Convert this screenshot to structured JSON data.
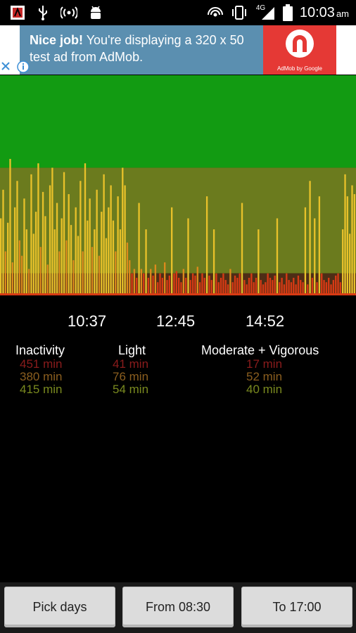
{
  "status_bar": {
    "time": "10:03",
    "ampm": "am",
    "network": "4G",
    "left_icons": [
      "app-notification-icon",
      "usb-icon",
      "hotspot-icon",
      "android-debug-icon"
    ],
    "right_icons": [
      "wifi-hotspot-icon",
      "vibrate-icon",
      "signal-icon",
      "battery-icon"
    ]
  },
  "ad": {
    "headline": "Nice job!",
    "body": " You're displaying a 320 x 50 test ad from AdMob.",
    "logo_caption": "AdMob by Google"
  },
  "chart_data": {
    "type": "bar",
    "zones": [
      {
        "name": "moderate-vigorous",
        "color": "#129b12",
        "from": 0.58,
        "to": 1.0
      },
      {
        "name": "light",
        "color": "#6b7b1e",
        "from": 0.1,
        "to": 0.58
      },
      {
        "name": "inactive",
        "color": "#4e2d16",
        "from": 0.0,
        "to": 0.1
      }
    ],
    "bar_colors": {
      "high": "#e8c12a",
      "mid": "#dd8a1c",
      "low": "#d83a14"
    },
    "values": [
      0.35,
      0.48,
      0.2,
      0.33,
      0.62,
      0.15,
      0.4,
      0.52,
      0.25,
      0.18,
      0.44,
      0.3,
      0.12,
      0.55,
      0.28,
      0.38,
      0.6,
      0.22,
      0.47,
      0.36,
      0.14,
      0.5,
      0.58,
      0.3,
      0.42,
      0.2,
      0.35,
      0.56,
      0.25,
      0.46,
      0.32,
      0.16,
      0.4,
      0.27,
      0.52,
      0.2,
      0.6,
      0.34,
      0.44,
      0.22,
      0.3,
      0.48,
      0.18,
      0.38,
      0.55,
      0.26,
      0.4,
      0.5,
      0.34,
      0.2,
      0.45,
      0.3,
      0.58,
      0.5,
      0.24,
      0.16,
      0.1,
      0.12,
      0.08,
      0.42,
      0.12,
      0.1,
      0.3,
      0.08,
      0.12,
      0.09,
      0.14,
      0.06,
      0.1,
      0.08,
      0.15,
      0.07,
      0.09,
      0.4,
      0.1,
      0.11,
      0.08,
      0.06,
      0.12,
      0.08,
      0.35,
      0.07,
      0.1,
      0.09,
      0.13,
      0.06,
      0.1,
      0.08,
      0.45,
      0.09,
      0.07,
      0.3,
      0.1,
      0.06,
      0.08,
      0.1,
      0.07,
      0.05,
      0.12,
      0.06,
      0.09,
      0.08,
      0.1,
      0.42,
      0.07,
      0.05,
      0.08,
      0.1,
      0.06,
      0.08,
      0.3,
      0.07,
      0.05,
      0.06,
      0.1,
      0.08,
      0.07,
      0.09,
      0.35,
      0.06,
      0.08,
      0.05,
      0.1,
      0.07,
      0.06,
      0.08,
      0.05,
      0.09,
      0.07,
      0.06,
      0.4,
      0.05,
      0.52,
      0.08,
      0.35,
      0.06,
      0.45,
      0.1,
      0.07,
      0.06,
      0.08,
      0.05,
      0.07,
      0.09,
      0.1,
      0.06,
      0.3,
      0.55,
      0.45,
      0.28,
      0.5,
      0.46
    ]
  },
  "time_labels": [
    "10:37",
    "12:45",
    "14:52"
  ],
  "stats": {
    "inactivity": {
      "label": "Inactivity",
      "values": [
        "451 min",
        "380 min",
        "415 min"
      ]
    },
    "light": {
      "label": "Light",
      "values": [
        "41 min",
        "76 min",
        "54 min"
      ]
    },
    "moderate": {
      "label": "Moderate + Vigorous",
      "values": [
        "17 min",
        "52 min",
        "40 min"
      ]
    }
  },
  "buttons": {
    "pick_days": "Pick days",
    "from": "From 08:30",
    "to": "To 17:00"
  }
}
